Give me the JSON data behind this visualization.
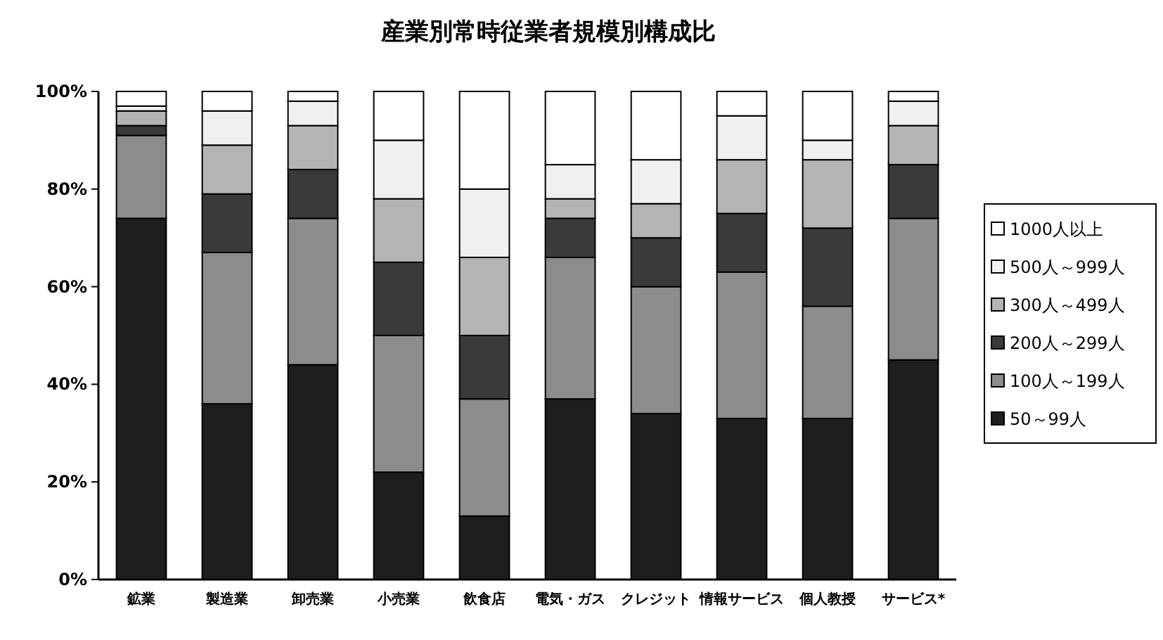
{
  "chart_data": {
    "type": "bar",
    "title": "産業別常時従業者規模別構成比",
    "stacked": true,
    "legend": "right",
    "categories": [
      "鉱業",
      "製造業",
      "卸売業",
      "小売業",
      "飲食店",
      "電気・ガス",
      "クレジット",
      "情報サービス",
      "個人教授",
      "サービス*"
    ],
    "ylim": [
      0,
      100
    ],
    "yticks": [
      {
        "value": 0,
        "label": "0%"
      },
      {
        "value": 20,
        "label": "20%"
      },
      {
        "value": 40,
        "label": "40%"
      },
      {
        "value": 60,
        "label": "60%"
      },
      {
        "value": 80,
        "label": "80%"
      },
      {
        "value": 100,
        "label": "100%"
      }
    ],
    "series": [
      {
        "name": "50～99人",
        "color": "#1e1e1e",
        "values": [
          74,
          36,
          44,
          22,
          13,
          37,
          34,
          33,
          33,
          45
        ]
      },
      {
        "name": "100人～199人",
        "color": "#8c8c8c",
        "values": [
          17,
          31,
          30,
          28,
          24,
          29,
          26,
          30,
          23,
          29
        ]
      },
      {
        "name": "200人～299人",
        "color": "#3a3a3a",
        "values": [
          2,
          12,
          10,
          15,
          13,
          8,
          10,
          12,
          16,
          11
        ]
      },
      {
        "name": "300人～499人",
        "color": "#b4b4b4",
        "values": [
          3,
          10,
          9,
          13,
          16,
          4,
          7,
          11,
          14,
          8
        ]
      },
      {
        "name": "500人～999人",
        "color": "#f0f0f0",
        "values": [
          1,
          7,
          5,
          12,
          14,
          7,
          9,
          9,
          4,
          5
        ]
      },
      {
        "name": "1000人以上",
        "color": "#ffffff",
        "values": [
          3,
          4,
          2,
          10,
          20,
          15,
          14,
          5,
          10,
          2
        ]
      }
    ]
  }
}
